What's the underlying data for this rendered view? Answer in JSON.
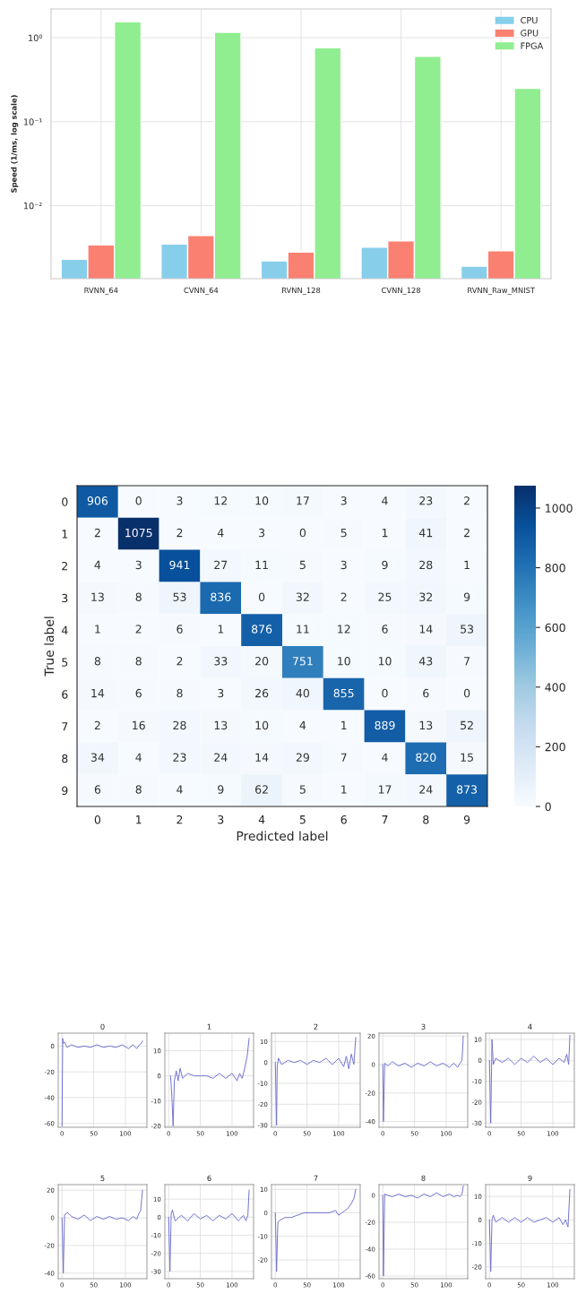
{
  "chart_data": [
    {
      "type": "bar",
      "ylabel": "Speed (1/ms, log scale)",
      "categories": [
        "RVNN_64",
        "CVNN_64",
        "RVNN_128",
        "CVNN_128",
        "RVNN_Raw_MNIST"
      ],
      "series": [
        {
          "name": "CPU",
          "color": "#87ceeb",
          "values": [
            0.0023,
            0.0035,
            0.0022,
            0.0032,
            0.0019
          ]
        },
        {
          "name": "GPU",
          "color": "#fa8072",
          "values": [
            0.0034,
            0.0044,
            0.0028,
            0.0038,
            0.0029
          ]
        },
        {
          "name": "FPGA",
          "color": "#90ee90",
          "values": [
            1.55,
            1.16,
            0.76,
            0.6,
            0.25
          ]
        }
      ],
      "log": "y",
      "ylim": [
        0.00135,
        2.2
      ],
      "yticks": [
        {
          "value": 0.01,
          "label": "10⁻²"
        },
        {
          "value": 0.1,
          "label": "10⁻¹"
        },
        {
          "value": 1,
          "label": "10⁰"
        }
      ],
      "grid": true,
      "legend": "top right"
    },
    {
      "type": "heatmap",
      "xlabel": "Predicted label",
      "ylabel": "True label",
      "categories": [
        "0",
        "1",
        "2",
        "3",
        "4",
        "5",
        "6",
        "7",
        "8",
        "9"
      ],
      "y_categories": [
        "0",
        "1",
        "2",
        "3",
        "4",
        "5",
        "6",
        "7",
        "8",
        "9"
      ],
      "cells": [
        [
          906,
          0,
          3,
          12,
          10,
          17,
          3,
          4,
          23,
          2
        ],
        [
          2,
          1075,
          2,
          4,
          3,
          0,
          5,
          1,
          41,
          2
        ],
        [
          4,
          3,
          941,
          27,
          11,
          5,
          3,
          9,
          28,
          1
        ],
        [
          13,
          8,
          53,
          836,
          0,
          32,
          2,
          25,
          32,
          9
        ],
        [
          1,
          2,
          6,
          1,
          876,
          11,
          12,
          6,
          14,
          53
        ],
        [
          8,
          8,
          2,
          33,
          20,
          751,
          10,
          10,
          43,
          7
        ],
        [
          14,
          6,
          8,
          3,
          26,
          40,
          855,
          0,
          6,
          0
        ],
        [
          2,
          16,
          28,
          13,
          10,
          4,
          1,
          889,
          13,
          52
        ],
        [
          34,
          4,
          23,
          24,
          14,
          29,
          7,
          4,
          820,
          15
        ],
        [
          6,
          8,
          4,
          9,
          62,
          5,
          1,
          17,
          24,
          873
        ]
      ],
      "data_labels": true,
      "clim": [
        0,
        1075
      ],
      "cticks": [
        0,
        200,
        400,
        600,
        800,
        1000
      ]
    },
    {
      "type": "line",
      "title": "0",
      "xlim": [
        -6,
        134
      ],
      "xticks": [
        0,
        50,
        100
      ],
      "ylim": [
        -63,
        10
      ],
      "yticks": [
        -60,
        -40,
        -20,
        0
      ],
      "grid": true,
      "series": [
        {
          "color": "#7070d0",
          "x": [
            0,
            1,
            2,
            4,
            8,
            15,
            25,
            35,
            45,
            55,
            65,
            75,
            85,
            95,
            105,
            112,
            118,
            122,
            125,
            127
          ],
          "values": [
            -62,
            6,
            2,
            3,
            -1,
            1,
            -1,
            0,
            -1,
            1,
            -1,
            0,
            -1,
            1,
            -2,
            1,
            -2,
            1,
            2,
            4
          ]
        }
      ]
    },
    {
      "type": "line",
      "title": "1",
      "xlim": [
        -6,
        134
      ],
      "xticks": [
        0,
        50,
        100
      ],
      "ylim": [
        -20.5,
        17
      ],
      "yticks": [
        -20,
        -10,
        0,
        10
      ],
      "grid": true,
      "series": [
        {
          "color": "#7070d0",
          "x": [
            3,
            5,
            7,
            9,
            12,
            15,
            18,
            22,
            30,
            40,
            50,
            60,
            70,
            80,
            90,
            100,
            108,
            112,
            116,
            120,
            124,
            127
          ],
          "values": [
            0,
            -8,
            -20,
            -2,
            2,
            -2,
            3,
            -1,
            1,
            0,
            0,
            0,
            -1,
            1,
            -1,
            1,
            -2,
            1,
            -1,
            3,
            8,
            15
          ]
        }
      ]
    },
    {
      "type": "line",
      "title": "2",
      "xlim": [
        -6,
        134
      ],
      "xticks": [
        0,
        50,
        100
      ],
      "ylim": [
        -31,
        14
      ],
      "yticks": [
        -30,
        -20,
        -10,
        0,
        10
      ],
      "grid": true,
      "series": [
        {
          "color": "#7070d0",
          "x": [
            0,
            2,
            3,
            5,
            10,
            20,
            30,
            40,
            50,
            60,
            70,
            80,
            90,
            100,
            108,
            112,
            116,
            120,
            124,
            127
          ],
          "values": [
            0,
            -30,
            -2,
            2,
            -1,
            1,
            0,
            1,
            -1,
            1,
            0,
            2,
            -1,
            2,
            -2,
            3,
            -3,
            4,
            -1,
            12
          ]
        }
      ]
    },
    {
      "type": "line",
      "title": "3",
      "xlim": [
        -6,
        134
      ],
      "xticks": [
        0,
        50,
        100
      ],
      "ylim": [
        -44,
        22
      ],
      "yticks": [
        -40,
        -20,
        0,
        20
      ],
      "grid": true,
      "series": [
        {
          "color": "#7070d0",
          "x": [
            0,
            1,
            3,
            8,
            15,
            25,
            35,
            45,
            55,
            65,
            75,
            85,
            95,
            105,
            112,
            118,
            122,
            125,
            127
          ],
          "values": [
            0,
            -40,
            1,
            -1,
            2,
            -1,
            1,
            -2,
            1,
            -1,
            2,
            -1,
            1,
            -2,
            1,
            -2,
            1,
            3,
            20
          ]
        }
      ]
    },
    {
      "type": "line",
      "title": "4",
      "xlim": [
        -6,
        134
      ],
      "xticks": [
        0,
        50,
        100
      ],
      "ylim": [
        -32,
        13
      ],
      "yticks": [
        -30,
        -20,
        -10,
        0,
        10
      ],
      "grid": true,
      "series": [
        {
          "color": "#7070d0",
          "x": [
            0,
            2,
            4,
            6,
            10,
            20,
            30,
            40,
            50,
            60,
            70,
            80,
            90,
            100,
            110,
            118,
            122,
            125,
            127
          ],
          "values": [
            0,
            -30,
            10,
            -2,
            1,
            -1,
            1,
            -2,
            1,
            -1,
            2,
            -1,
            1,
            -2,
            1,
            -1,
            3,
            -2,
            12
          ]
        }
      ]
    },
    {
      "type": "line",
      "title": "5",
      "xlim": [
        -6,
        134
      ],
      "xticks": [
        0,
        50,
        100
      ],
      "ylim": [
        -44,
        24
      ],
      "yticks": [
        -40,
        -20,
        0,
        20
      ],
      "grid": true,
      "series": [
        {
          "color": "#7070d0",
          "x": [
            0,
            2,
            4,
            8,
            15,
            25,
            35,
            45,
            55,
            65,
            75,
            85,
            95,
            105,
            112,
            118,
            121,
            124,
            127
          ],
          "values": [
            0,
            -40,
            2,
            4,
            1,
            -1,
            2,
            -2,
            1,
            -1,
            1,
            -1,
            0,
            -2,
            1,
            -1,
            3,
            5,
            20
          ]
        }
      ]
    },
    {
      "type": "line",
      "title": "6",
      "xlim": [
        -6,
        134
      ],
      "xticks": [
        0,
        50,
        100
      ],
      "ylim": [
        -34,
        18
      ],
      "yticks": [
        -30,
        -20,
        -10,
        0,
        10
      ],
      "grid": true,
      "series": [
        {
          "color": "#7070d0",
          "x": [
            0,
            2,
            4,
            6,
            10,
            20,
            30,
            40,
            50,
            60,
            70,
            80,
            90,
            100,
            110,
            118,
            122,
            125,
            127
          ],
          "values": [
            0,
            -30,
            2,
            4,
            -2,
            1,
            -2,
            2,
            -1,
            1,
            -2,
            1,
            -1,
            2,
            -2,
            1,
            -2,
            1,
            15
          ]
        }
      ]
    },
    {
      "type": "line",
      "title": "7",
      "xlim": [
        -6,
        134
      ],
      "xticks": [
        0,
        50,
        100
      ],
      "ylim": [
        -28,
        12
      ],
      "yticks": [
        -20,
        -10,
        0,
        10
      ],
      "grid": true,
      "series": [
        {
          "color": "#7070d0",
          "x": [
            0,
            2,
            4,
            8,
            15,
            25,
            35,
            45,
            55,
            65,
            75,
            85,
            95,
            100,
            105,
            110,
            115,
            120,
            124,
            127
          ],
          "values": [
            0,
            -25,
            -4,
            -3,
            -2,
            -2,
            -1,
            0,
            0,
            0,
            0,
            0,
            1,
            -1,
            0,
            1,
            2,
            4,
            6,
            10
          ]
        }
      ]
    },
    {
      "type": "line",
      "title": "8",
      "xlim": [
        -6,
        134
      ],
      "xticks": [
        0,
        50,
        100
      ],
      "ylim": [
        -62,
        8
      ],
      "yticks": [
        -60,
        -40,
        -20,
        0
      ],
      "grid": true,
      "series": [
        {
          "color": "#7070d0",
          "x": [
            0,
            1,
            3,
            8,
            15,
            25,
            35,
            45,
            55,
            65,
            75,
            85,
            95,
            105,
            112,
            118,
            122,
            125,
            127
          ],
          "values": [
            0,
            -60,
            1,
            0,
            -1,
            1,
            -1,
            0,
            -2,
            1,
            -1,
            2,
            -1,
            1,
            -1,
            0,
            -1,
            1,
            7
          ]
        }
      ]
    },
    {
      "type": "line",
      "title": "9",
      "xlim": [
        -6,
        134
      ],
      "xticks": [
        0,
        50,
        100
      ],
      "ylim": [
        -25,
        15
      ],
      "yticks": [
        -20,
        -10,
        0,
        10
      ],
      "grid": true,
      "series": [
        {
          "color": "#7070d0",
          "x": [
            0,
            2,
            4,
            6,
            10,
            20,
            30,
            40,
            50,
            60,
            70,
            80,
            90,
            100,
            110,
            116,
            120,
            124,
            127
          ],
          "values": [
            0,
            -22,
            0,
            2,
            -1,
            1,
            -1,
            1,
            -1,
            1,
            -1,
            0,
            1,
            -1,
            1,
            -2,
            0,
            -3,
            13
          ]
        }
      ]
    }
  ]
}
